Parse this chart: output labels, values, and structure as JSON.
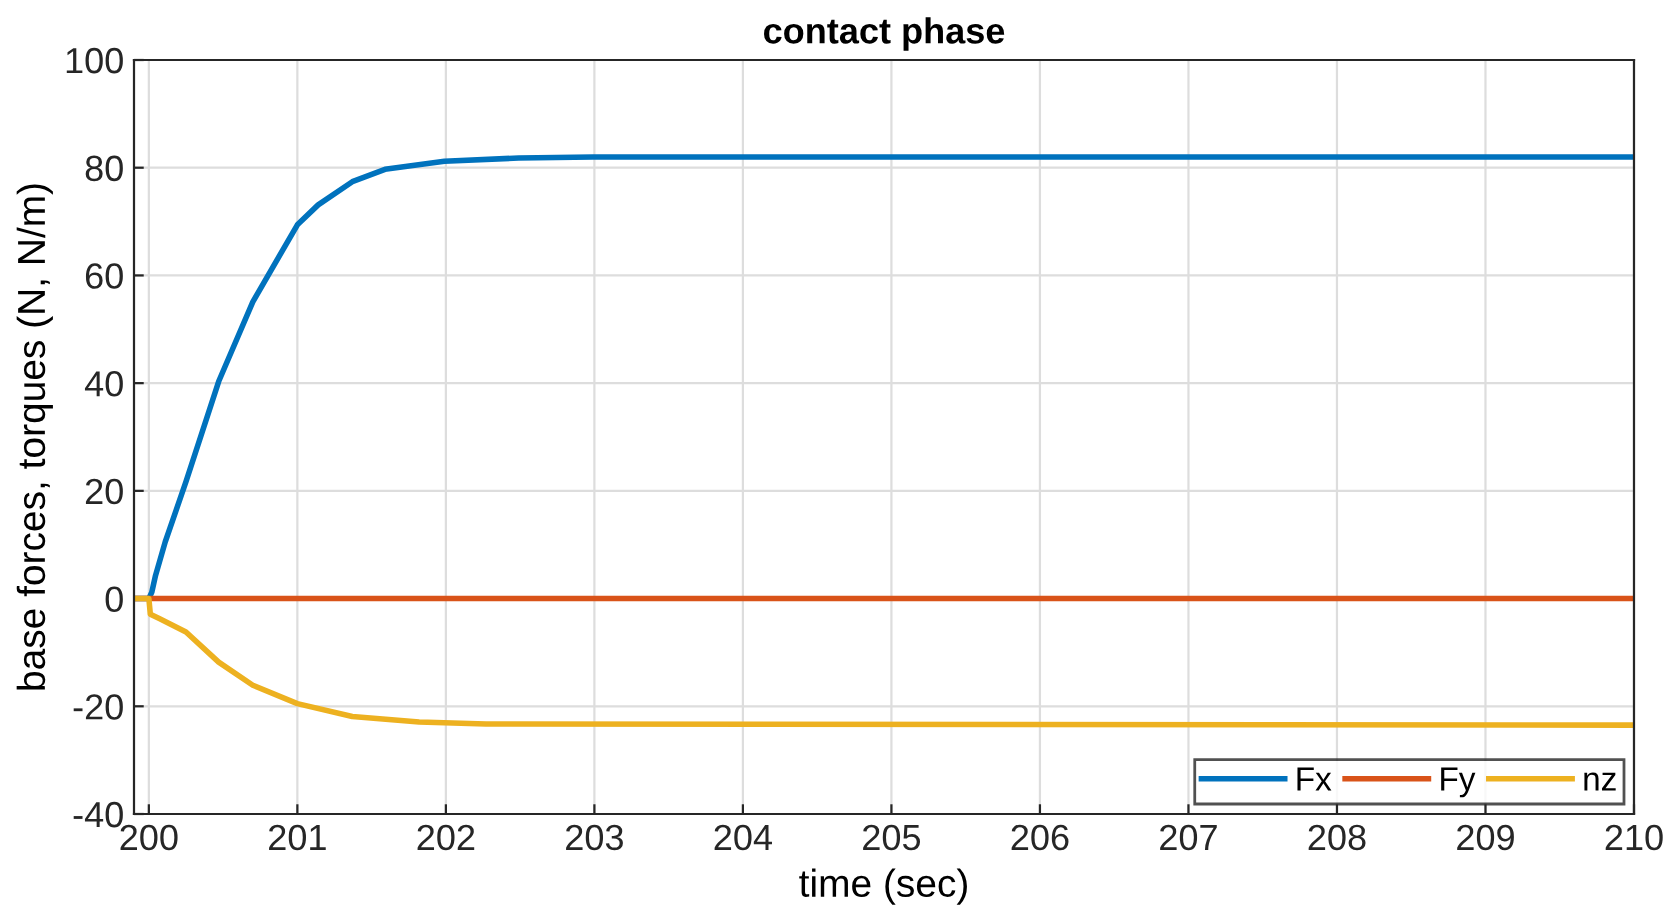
{
  "chart_data": {
    "type": "line",
    "title": "contact phase",
    "xlabel": "time (sec)",
    "ylabel": "base forces, torques (N, N/m)",
    "xlim": [
      199.9,
      210
    ],
    "xticks": [
      200,
      201,
      202,
      203,
      204,
      205,
      206,
      207,
      208,
      209,
      210
    ],
    "ylim": [
      -40,
      100
    ],
    "yticks": [
      -40,
      -20,
      0,
      20,
      40,
      60,
      80,
      100
    ],
    "grid": true,
    "legend": "bottom right",
    "series": [
      {
        "name": "Fx",
        "color": "#0072bd",
        "x": [
          199.9,
          200,
          200.02,
          200.045,
          200.11,
          200.25,
          200.47,
          200.7,
          201.0,
          201.14,
          201.37,
          201.59,
          201.99,
          202.49,
          202.99,
          210
        ],
        "values": [
          0,
          0,
          1.2,
          4.3,
          10.5,
          21.7,
          40.3,
          55.1,
          69.4,
          73.1,
          77.4,
          79.7,
          81.2,
          81.8,
          82.0,
          82.0
        ]
      },
      {
        "name": "Fy",
        "color": "#d95319",
        "x": [
          199.9,
          210
        ],
        "values": [
          0,
          0
        ]
      },
      {
        "name": "nz",
        "color": "#edb120",
        "x": [
          199.9,
          200,
          200.01,
          200.07,
          200.25,
          200.47,
          200.7,
          201.0,
          201.37,
          201.82,
          202.27,
          210
        ],
        "values": [
          0,
          0,
          -2.9,
          -3.7,
          -6.2,
          -11.8,
          -16.1,
          -19.5,
          -21.9,
          -22.9,
          -23.3,
          -23.5
        ]
      }
    ]
  }
}
